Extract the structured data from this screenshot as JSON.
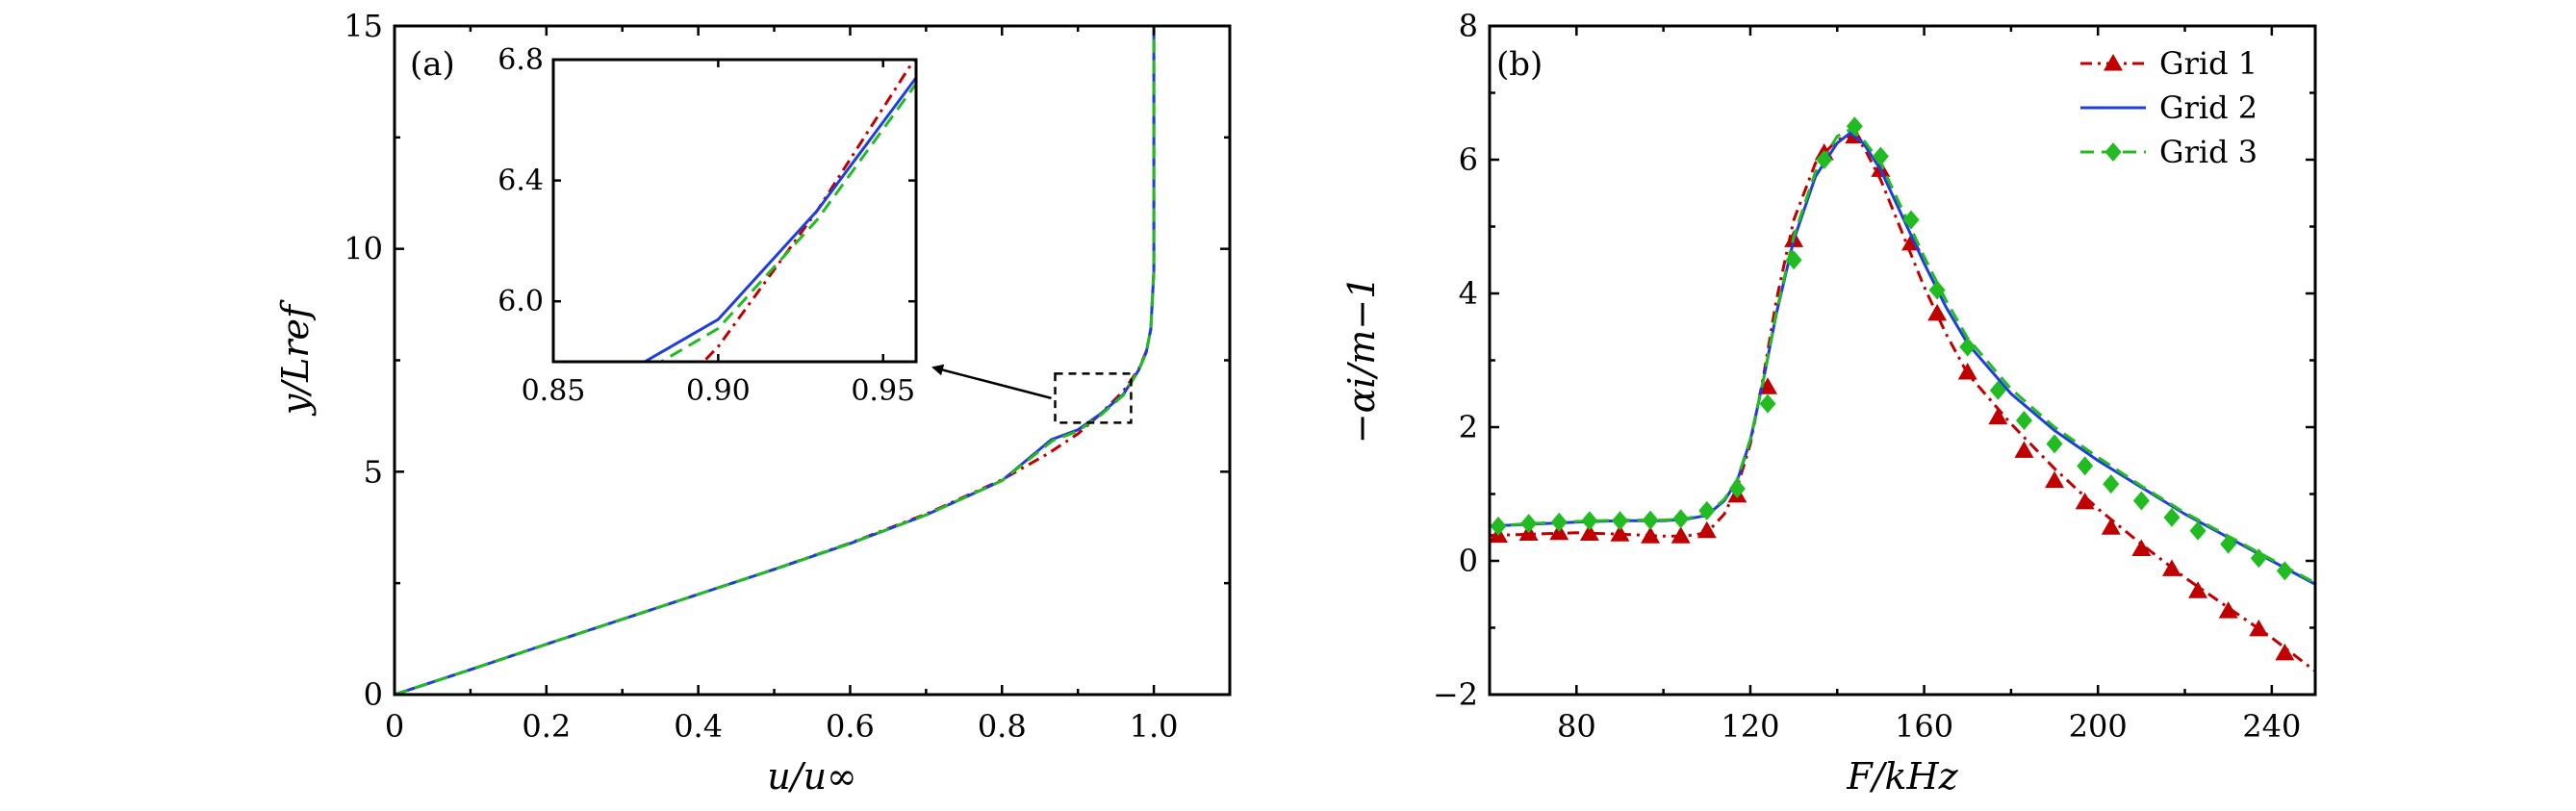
{
  "chart_data": [
    {
      "type": "line",
      "panel_label": "(a)",
      "xlabel": "u/u∞",
      "ylabel": "y/Lref",
      "xlim": [
        0,
        1.1
      ],
      "ylim": [
        0,
        15
      ],
      "xticks": [
        0,
        0.2,
        0.4,
        0.6,
        0.8,
        1.0
      ],
      "xtick_labels": [
        "0",
        "0.2",
        "0.4",
        "0.6",
        "0.8",
        "1.0"
      ],
      "yticks": [
        0,
        5,
        10,
        15
      ],
      "ytick_labels": [
        "0",
        "5",
        "10",
        "15"
      ],
      "series": [
        {
          "name": "Grid 1",
          "color": "#c00000",
          "style": "dash-dot",
          "x": [
            0.0,
            0.1,
            0.2,
            0.3,
            0.4,
            0.5,
            0.6,
            0.7,
            0.8,
            0.86,
            0.9,
            0.93,
            0.96,
            0.98,
            0.99,
            0.996,
            1.0,
            1.0
          ],
          "y": [
            0.0,
            0.56,
            1.13,
            1.69,
            2.25,
            2.81,
            3.4,
            4.05,
            4.82,
            5.4,
            5.85,
            6.3,
            6.81,
            7.3,
            7.7,
            8.2,
            9.5,
            15.0
          ]
        },
        {
          "name": "Grid 2",
          "color": "#1f3fdc",
          "style": "solid",
          "x": [
            0.0,
            0.1,
            0.2,
            0.3,
            0.4,
            0.5,
            0.6,
            0.7,
            0.8,
            0.865,
            0.9,
            0.93,
            0.96,
            0.98,
            0.99,
            0.996,
            1.0,
            1.0
          ],
          "y": [
            0.0,
            0.56,
            1.13,
            1.69,
            2.25,
            2.81,
            3.39,
            4.03,
            4.8,
            5.72,
            5.94,
            6.3,
            6.74,
            7.28,
            7.68,
            8.2,
            9.5,
            15.0
          ]
        },
        {
          "name": "Grid 3",
          "color": "#22bb22",
          "style": "dashed",
          "x": [
            0.0,
            0.1,
            0.2,
            0.3,
            0.4,
            0.5,
            0.6,
            0.7,
            0.8,
            0.867,
            0.9,
            0.93,
            0.96,
            0.98,
            0.99,
            0.996,
            1.0,
            1.0
          ],
          "y": [
            0.0,
            0.56,
            1.13,
            1.69,
            2.25,
            2.81,
            3.39,
            4.03,
            4.8,
            5.7,
            5.91,
            6.27,
            6.72,
            7.27,
            7.67,
            8.2,
            9.5,
            15.0
          ]
        }
      ],
      "inset": {
        "xlim": [
          0.85,
          0.96
        ],
        "ylim": [
          5.8,
          6.8
        ],
        "xtick_labels": [
          "0.85",
          "0.90",
          "0.95"
        ],
        "xticks": [
          0.85,
          0.9,
          0.95
        ],
        "ytick_labels": [
          "6.0",
          "6.4",
          "6.8"
        ],
        "yticks": [
          6.0,
          6.4,
          6.8
        ],
        "region": {
          "x": [
            0.87,
            0.97
          ],
          "y": [
            6.1,
            7.2
          ]
        }
      }
    },
    {
      "type": "line",
      "panel_label": "(b)",
      "xlabel": "F/kHz",
      "ylabel": "−αi/m−1",
      "xlim": [
        60,
        250
      ],
      "ylim": [
        -2,
        8
      ],
      "xticks": [
        80,
        120,
        160,
        200,
        240
      ],
      "xtick_labels": [
        "80",
        "120",
        "160",
        "200",
        "240"
      ],
      "yticks": [
        -2,
        0,
        2,
        4,
        6,
        8
      ],
      "ytick_labels": [
        "−2",
        "0",
        "2",
        "4",
        "6",
        "8"
      ],
      "legend": "top-right",
      "series": [
        {
          "name": "Grid 1",
          "label": "Grid 1",
          "color": "#c00000",
          "style": "dash-dot",
          "marker": "triangle",
          "x": [
            60,
            70,
            80,
            90,
            100,
            105,
            110,
            114,
            117,
            120,
            123,
            126,
            130,
            135,
            140,
            143,
            146,
            150,
            155,
            160,
            165,
            170,
            180,
            190,
            200,
            210,
            220,
            230,
            240,
            250
          ],
          "y": [
            0.38,
            0.4,
            0.42,
            0.4,
            0.37,
            0.37,
            0.42,
            0.7,
            1.1,
            1.75,
            2.75,
            3.9,
            5.1,
            5.95,
            6.3,
            6.35,
            6.2,
            5.7,
            4.9,
            4.1,
            3.4,
            2.8,
            2.05,
            1.38,
            0.78,
            0.25,
            -0.25,
            -0.7,
            -1.15,
            -1.65
          ],
          "marker_x": [
            62,
            69,
            76,
            83,
            90,
            97,
            104,
            110,
            117,
            124,
            130,
            137,
            144,
            150,
            157,
            163,
            170,
            177,
            183,
            190,
            197,
            203,
            210,
            217,
            223,
            230,
            237,
            243
          ],
          "marker_y": [
            0.38,
            0.41,
            0.42,
            0.41,
            0.4,
            0.37,
            0.37,
            0.45,
            0.98,
            2.6,
            4.8,
            6.1,
            6.35,
            5.85,
            4.75,
            3.7,
            2.82,
            2.15,
            1.65,
            1.2,
            0.88,
            0.5,
            0.18,
            -0.12,
            -0.45,
            -0.75,
            -1.02,
            -1.38
          ]
        },
        {
          "name": "Grid 2",
          "label": "Grid 2",
          "color": "#1f3fdc",
          "style": "solid",
          "marker": "none",
          "x": [
            60,
            70,
            80,
            90,
            100,
            105,
            110,
            114,
            117,
            120,
            123,
            126,
            130,
            135,
            140,
            143,
            146,
            150,
            155,
            160,
            165,
            170,
            180,
            190,
            200,
            210,
            220,
            230,
            240,
            250
          ],
          "y": [
            0.52,
            0.55,
            0.58,
            0.6,
            0.6,
            0.62,
            0.68,
            0.9,
            1.2,
            1.8,
            2.7,
            3.7,
            4.8,
            5.75,
            6.25,
            6.4,
            6.25,
            5.85,
            5.15,
            4.45,
            3.8,
            3.25,
            2.5,
            1.95,
            1.5,
            1.1,
            0.7,
            0.35,
            0.0,
            -0.35
          ]
        },
        {
          "name": "Grid 3",
          "label": "Grid 3",
          "color": "#22bb22",
          "style": "dashed",
          "marker": "diamond",
          "x": [
            60,
            70,
            80,
            90,
            100,
            105,
            110,
            114,
            117,
            120,
            123,
            126,
            130,
            135,
            140,
            143,
            146,
            150,
            155,
            160,
            165,
            170,
            180,
            190,
            200,
            210,
            220,
            230,
            240,
            250
          ],
          "y": [
            0.52,
            0.56,
            0.59,
            0.61,
            0.61,
            0.63,
            0.7,
            0.92,
            1.22,
            1.82,
            2.7,
            3.72,
            4.85,
            5.82,
            6.35,
            6.45,
            6.3,
            5.95,
            5.25,
            4.55,
            3.9,
            3.33,
            2.57,
            2.0,
            1.55,
            1.12,
            0.72,
            0.37,
            0.02,
            -0.33
          ],
          "marker_x": [
            62,
            69,
            76,
            83,
            90,
            97,
            104,
            110,
            117,
            124,
            130,
            137,
            144,
            150,
            157,
            163,
            170,
            177,
            183,
            190,
            197,
            203,
            210,
            217,
            223,
            230,
            237,
            243
          ],
          "marker_y": [
            0.52,
            0.56,
            0.58,
            0.6,
            0.6,
            0.61,
            0.63,
            0.75,
            1.08,
            2.35,
            4.5,
            6.0,
            6.5,
            6.05,
            5.1,
            4.05,
            3.2,
            2.55,
            2.1,
            1.75,
            1.42,
            1.15,
            0.9,
            0.65,
            0.45,
            0.25,
            0.04,
            -0.15
          ]
        }
      ]
    }
  ]
}
